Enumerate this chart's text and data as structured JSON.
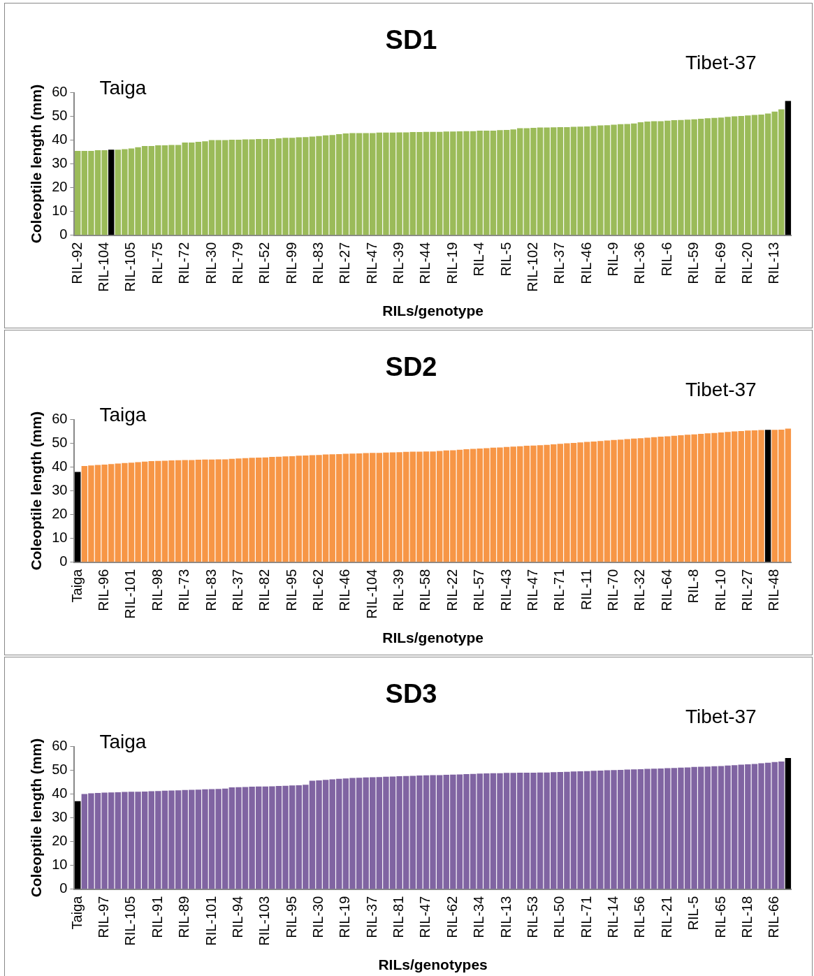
{
  "chart_data": [
    {
      "type": "bar",
      "title": "SD1",
      "xlabel": "RILs/genotype",
      "ylabel": "Coleoptile length (mm)",
      "ylim": [
        0,
        60
      ],
      "yticks": [
        0,
        10,
        20,
        30,
        40,
        50,
        60
      ],
      "grid": false,
      "legend": false,
      "annotations": [
        "Taiga",
        "Tibet-37"
      ],
      "categories": [
        "RIL-92",
        null,
        null,
        null,
        "RIL-104",
        null,
        null,
        null,
        "RIL-105",
        null,
        null,
        null,
        "RIL-75",
        null,
        null,
        null,
        "RIL-72",
        null,
        null,
        null,
        "RIL-30",
        null,
        null,
        null,
        "RIL-79",
        null,
        null,
        null,
        "RIL-52",
        null,
        null,
        null,
        "RIL-99",
        null,
        null,
        null,
        "RIL-83",
        null,
        null,
        null,
        "RIL-27",
        null,
        null,
        null,
        "RIL-47",
        null,
        null,
        null,
        "RIL-39",
        null,
        null,
        null,
        "RIL-44",
        null,
        null,
        null,
        "RIL-19",
        null,
        null,
        null,
        "RIL-4",
        null,
        null,
        null,
        "RIL-5",
        null,
        null,
        null,
        "RIL-102",
        null,
        null,
        null,
        "RIL-37",
        null,
        null,
        null,
        "RIL-46",
        null,
        null,
        null,
        "RIL-9",
        null,
        null,
        null,
        "RIL-36",
        null,
        null,
        null,
        "RIL-6",
        null,
        null,
        null,
        "RIL-59",
        null,
        null,
        null,
        "RIL-69",
        null,
        null,
        null,
        "RIL-20",
        null,
        null,
        null,
        "RIL-13",
        null,
        null
      ],
      "values": [
        35.5,
        35.5,
        35.5,
        35.8,
        35.8,
        36,
        36,
        36.2,
        36.5,
        37,
        37.5,
        37.5,
        37.8,
        37.8,
        38,
        38,
        39,
        39,
        39.3,
        39.5,
        40,
        40,
        40,
        40.2,
        40.2,
        40.3,
        40.3,
        40.5,
        40.5,
        40.5,
        40.8,
        41,
        41,
        41.2,
        41.3,
        41.5,
        41.7,
        42,
        42.2,
        42.5,
        42.8,
        43,
        43,
        43,
        43,
        43.2,
        43.2,
        43.2,
        43.3,
        43.3,
        43.4,
        43.4,
        43.5,
        43.5,
        43.5,
        43.6,
        43.6,
        43.7,
        43.8,
        43.8,
        44,
        44,
        44,
        44.2,
        44.3,
        44.5,
        45,
        45,
        45.2,
        45.3,
        45.3,
        45.4,
        45.5,
        45.5,
        45.6,
        45.7,
        45.8,
        46,
        46.2,
        46.3,
        46.5,
        46.7,
        46.8,
        47,
        47.5,
        47.8,
        48,
        48,
        48.2,
        48.4,
        48.5,
        48.6,
        48.8,
        49,
        49.2,
        49.4,
        49.5,
        49.8,
        50,
        50.2,
        50.4,
        50.6,
        50.8,
        51.2,
        52,
        53,
        56.5
      ],
      "colors": [
        "#9bbb59",
        "#9bbb59",
        "#9bbb59",
        "#9bbb59",
        "#9bbb59",
        "#000000",
        "#9bbb59",
        "#9bbb59",
        "#9bbb59",
        "#9bbb59",
        "#9bbb59",
        "#9bbb59",
        "#9bbb59",
        "#9bbb59",
        "#9bbb59",
        "#9bbb59",
        "#9bbb59",
        "#9bbb59",
        "#9bbb59",
        "#9bbb59",
        "#9bbb59",
        "#9bbb59",
        "#9bbb59",
        "#9bbb59",
        "#9bbb59",
        "#9bbb59",
        "#9bbb59",
        "#9bbb59",
        "#9bbb59",
        "#9bbb59",
        "#9bbb59",
        "#9bbb59",
        "#9bbb59",
        "#9bbb59",
        "#9bbb59",
        "#9bbb59",
        "#9bbb59",
        "#9bbb59",
        "#9bbb59",
        "#9bbb59",
        "#9bbb59",
        "#9bbb59",
        "#9bbb59",
        "#9bbb59",
        "#9bbb59",
        "#9bbb59",
        "#9bbb59",
        "#9bbb59",
        "#9bbb59",
        "#9bbb59",
        "#9bbb59",
        "#9bbb59",
        "#9bbb59",
        "#9bbb59",
        "#9bbb59",
        "#9bbb59",
        "#9bbb59",
        "#9bbb59",
        "#9bbb59",
        "#9bbb59",
        "#9bbb59",
        "#9bbb59",
        "#9bbb59",
        "#9bbb59",
        "#9bbb59",
        "#9bbb59",
        "#9bbb59",
        "#9bbb59",
        "#9bbb59",
        "#9bbb59",
        "#9bbb59",
        "#9bbb59",
        "#9bbb59",
        "#9bbb59",
        "#9bbb59",
        "#9bbb59",
        "#9bbb59",
        "#9bbb59",
        "#9bbb59",
        "#9bbb59",
        "#9bbb59",
        "#9bbb59",
        "#9bbb59",
        "#9bbb59",
        "#9bbb59",
        "#9bbb59",
        "#9bbb59",
        "#9bbb59",
        "#9bbb59",
        "#9bbb59",
        "#9bbb59",
        "#9bbb59",
        "#9bbb59",
        "#9bbb59",
        "#9bbb59",
        "#9bbb59",
        "#9bbb59",
        "#9bbb59",
        "#9bbb59",
        "#9bbb59",
        "#9bbb59",
        "#9bbb59",
        "#9bbb59",
        "#9bbb59",
        "#9bbb59",
        "#9bbb59",
        "#000000"
      ]
    },
    {
      "type": "bar",
      "title": "SD2",
      "xlabel": "RILs/genotype",
      "ylabel": "Coleoptile length (mm)",
      "ylim": [
        0,
        60
      ],
      "yticks": [
        0,
        10,
        20,
        30,
        40,
        50,
        60
      ],
      "grid": false,
      "legend": false,
      "annotations": [
        "Taiga",
        "Tibet-37"
      ],
      "categories": [
        "Taiga",
        null,
        null,
        null,
        "RIL-96",
        null,
        null,
        null,
        "RIL-101",
        null,
        null,
        null,
        "RIL-98",
        null,
        null,
        null,
        "RIL-73",
        null,
        null,
        null,
        "RIL-83",
        null,
        null,
        null,
        "RIL-37",
        null,
        null,
        null,
        "RIL-82",
        null,
        null,
        null,
        "RIL-95",
        null,
        null,
        null,
        "RIL-62",
        null,
        null,
        null,
        "RIL-46",
        null,
        null,
        null,
        "RIL-104",
        null,
        null,
        null,
        "RIL-39",
        null,
        null,
        null,
        "RIL-58",
        null,
        null,
        null,
        "RIL-22",
        null,
        null,
        null,
        "RIL-57",
        null,
        null,
        null,
        "RIL-43",
        null,
        null,
        null,
        "RIL-47",
        null,
        null,
        null,
        "RIL-71",
        null,
        null,
        null,
        "RIL-11",
        null,
        null,
        null,
        "RIL-70",
        null,
        null,
        null,
        "RIL-32",
        null,
        null,
        null,
        "RIL-64",
        null,
        null,
        null,
        "RIL-8",
        null,
        null,
        null,
        "RIL-10",
        null,
        null,
        null,
        "RIL-27",
        null,
        null,
        null,
        "RIL-48",
        null,
        null
      ],
      "values": [
        38,
        40.5,
        40.7,
        40.9,
        41.1,
        41.3,
        41.5,
        41.7,
        41.9,
        42.1,
        42.3,
        42.5,
        42.6,
        42.7,
        42.8,
        42.9,
        43,
        43,
        43.1,
        43.2,
        43.2,
        43.3,
        43.3,
        43.5,
        43.6,
        43.8,
        43.9,
        44,
        44.1,
        44.3,
        44.4,
        44.5,
        44.6,
        44.8,
        44.9,
        45,
        45.1,
        45.3,
        45.4,
        45.5,
        45.6,
        45.7,
        45.8,
        45.9,
        46,
        46,
        46.1,
        46.2,
        46.3,
        46.4,
        46.5,
        46.5,
        46.6,
        46.6,
        46.8,
        47,
        47.1,
        47.3,
        47.5,
        47.7,
        47.8,
        48,
        48.2,
        48.3,
        48.5,
        48.6,
        48.8,
        49,
        49.1,
        49.2,
        49.4,
        49.6,
        49.8,
        50,
        50.2,
        50.4,
        50.6,
        50.8,
        51,
        51.2,
        51.4,
        51.6,
        51.8,
        52,
        52.2,
        52.4,
        52.6,
        52.8,
        53,
        53.2,
        53.4,
        53.6,
        53.8,
        54,
        54.2,
        54.4,
        54.6,
        54.8,
        55,
        55.2,
        55.4,
        55.5,
        55.6,
        55.7,
        55.7,
        55.8,
        56.2
      ],
      "colors": [
        "#000000",
        "#f79646",
        "#f79646",
        "#f79646",
        "#f79646",
        "#f79646",
        "#f79646",
        "#f79646",
        "#f79646",
        "#f79646",
        "#f79646",
        "#f79646",
        "#f79646",
        "#f79646",
        "#f79646",
        "#f79646",
        "#f79646",
        "#f79646",
        "#f79646",
        "#f79646",
        "#f79646",
        "#f79646",
        "#f79646",
        "#f79646",
        "#f79646",
        "#f79646",
        "#f79646",
        "#f79646",
        "#f79646",
        "#f79646",
        "#f79646",
        "#f79646",
        "#f79646",
        "#f79646",
        "#f79646",
        "#f79646",
        "#f79646",
        "#f79646",
        "#f79646",
        "#f79646",
        "#f79646",
        "#f79646",
        "#f79646",
        "#f79646",
        "#f79646",
        "#f79646",
        "#f79646",
        "#f79646",
        "#f79646",
        "#f79646",
        "#f79646",
        "#f79646",
        "#f79646",
        "#f79646",
        "#f79646",
        "#f79646",
        "#f79646",
        "#f79646",
        "#f79646",
        "#f79646",
        "#f79646",
        "#f79646",
        "#f79646",
        "#f79646",
        "#f79646",
        "#f79646",
        "#f79646",
        "#f79646",
        "#f79646",
        "#f79646",
        "#f79646",
        "#f79646",
        "#f79646",
        "#f79646",
        "#f79646",
        "#f79646",
        "#f79646",
        "#f79646",
        "#f79646",
        "#f79646",
        "#f79646",
        "#f79646",
        "#f79646",
        "#f79646",
        "#f79646",
        "#f79646",
        "#f79646",
        "#f79646",
        "#f79646",
        "#f79646",
        "#f79646",
        "#f79646",
        "#f79646",
        "#f79646",
        "#f79646",
        "#f79646",
        "#f79646",
        "#f79646",
        "#f79646",
        "#f79646",
        "#f79646",
        "#f79646",
        "#f79646",
        "#000000",
        "#f79646",
        "#f79646",
        "#f79646"
      ]
    },
    {
      "type": "bar",
      "title": "SD3",
      "xlabel": "RILs/genotypes",
      "ylabel": "Coleoptile length (mm)",
      "ylim": [
        0,
        60
      ],
      "yticks": [
        0,
        10,
        20,
        30,
        40,
        50,
        60
      ],
      "grid": false,
      "legend": false,
      "annotations": [
        "Taiga",
        "Tibet-37"
      ],
      "categories": [
        "Taiga",
        null,
        null,
        null,
        "RIL-97",
        null,
        null,
        null,
        "RIL-105",
        null,
        null,
        null,
        "RIL-91",
        null,
        null,
        null,
        "RIL-89",
        null,
        null,
        null,
        "RIL-101",
        null,
        null,
        null,
        "RIL-94",
        null,
        null,
        null,
        "RIL-103",
        null,
        null,
        null,
        "RIL-95",
        null,
        null,
        null,
        "RIL-30",
        null,
        null,
        null,
        "RIL-19",
        null,
        null,
        null,
        "RIL-37",
        null,
        null,
        null,
        "RIL-81",
        null,
        null,
        null,
        "RIL-47",
        null,
        null,
        null,
        "RIL-62",
        null,
        null,
        null,
        "RIL-34",
        null,
        null,
        null,
        "RIL-13",
        null,
        null,
        null,
        "RIL-53",
        null,
        null,
        null,
        "RIL-50",
        null,
        null,
        null,
        "RIL-71",
        null,
        null,
        null,
        "RIL-14",
        null,
        null,
        null,
        "RIL-56",
        null,
        null,
        null,
        "RIL-21",
        null,
        null,
        null,
        "RIL-5",
        null,
        null,
        null,
        "RIL-65",
        null,
        null,
        null,
        "RIL-18",
        null,
        null,
        null,
        "RIL-66",
        null,
        null
      ],
      "values": [
        37,
        40,
        40.3,
        40.5,
        40.6,
        40.7,
        40.8,
        40.9,
        41,
        41,
        41.1,
        41.2,
        41.3,
        41.4,
        41.5,
        41.6,
        41.7,
        41.8,
        41.9,
        42,
        42.1,
        42.2,
        42.3,
        42.8,
        42.9,
        43,
        43.1,
        43.2,
        43.2,
        43.3,
        43.4,
        43.5,
        43.6,
        43.7,
        43.9,
        45.6,
        45.8,
        46,
        46.2,
        46.4,
        46.6,
        46.8,
        46.9,
        47,
        47.1,
        47.2,
        47.3,
        47.4,
        47.5,
        47.6,
        47.7,
        47.8,
        47.9,
        48,
        48,
        48.1,
        48.2,
        48.3,
        48.4,
        48.5,
        48.6,
        48.7,
        48.8,
        48.8,
        48.9,
        48.9,
        49,
        49,
        49,
        49.1,
        49.1,
        49.2,
        49.3,
        49.4,
        49.5,
        49.6,
        49.7,
        49.8,
        49.9,
        50,
        50.1,
        50.2,
        50.3,
        50.4,
        50.5,
        50.6,
        50.7,
        50.8,
        50.9,
        51,
        51.1,
        51.2,
        51.4,
        51.5,
        51.6,
        51.7,
        51.8,
        52,
        52.2,
        52.4,
        52.5,
        52.7,
        53,
        53.2,
        53.5,
        53.7,
        55.2
      ],
      "colors": [
        "#000000",
        "#8064a2",
        "#8064a2",
        "#8064a2",
        "#8064a2",
        "#8064a2",
        "#8064a2",
        "#8064a2",
        "#8064a2",
        "#8064a2",
        "#8064a2",
        "#8064a2",
        "#8064a2",
        "#8064a2",
        "#8064a2",
        "#8064a2",
        "#8064a2",
        "#8064a2",
        "#8064a2",
        "#8064a2",
        "#8064a2",
        "#8064a2",
        "#8064a2",
        "#8064a2",
        "#8064a2",
        "#8064a2",
        "#8064a2",
        "#8064a2",
        "#8064a2",
        "#8064a2",
        "#8064a2",
        "#8064a2",
        "#8064a2",
        "#8064a2",
        "#8064a2",
        "#8064a2",
        "#8064a2",
        "#8064a2",
        "#8064a2",
        "#8064a2",
        "#8064a2",
        "#8064a2",
        "#8064a2",
        "#8064a2",
        "#8064a2",
        "#8064a2",
        "#8064a2",
        "#8064a2",
        "#8064a2",
        "#8064a2",
        "#8064a2",
        "#8064a2",
        "#8064a2",
        "#8064a2",
        "#8064a2",
        "#8064a2",
        "#8064a2",
        "#8064a2",
        "#8064a2",
        "#8064a2",
        "#8064a2",
        "#8064a2",
        "#8064a2",
        "#8064a2",
        "#8064a2",
        "#8064a2",
        "#8064a2",
        "#8064a2",
        "#8064a2",
        "#8064a2",
        "#8064a2",
        "#8064a2",
        "#8064a2",
        "#8064a2",
        "#8064a2",
        "#8064a2",
        "#8064a2",
        "#8064a2",
        "#8064a2",
        "#8064a2",
        "#8064a2",
        "#8064a2",
        "#8064a2",
        "#8064a2",
        "#8064a2",
        "#8064a2",
        "#8064a2",
        "#8064a2",
        "#8064a2",
        "#8064a2",
        "#8064a2",
        "#8064a2",
        "#8064a2",
        "#8064a2",
        "#8064a2",
        "#8064a2",
        "#8064a2",
        "#8064a2",
        "#8064a2",
        "#8064a2",
        "#8064a2",
        "#8064a2",
        "#8064a2",
        "#8064a2",
        "#8064a2",
        "#8064a2",
        "#000000"
      ]
    }
  ]
}
